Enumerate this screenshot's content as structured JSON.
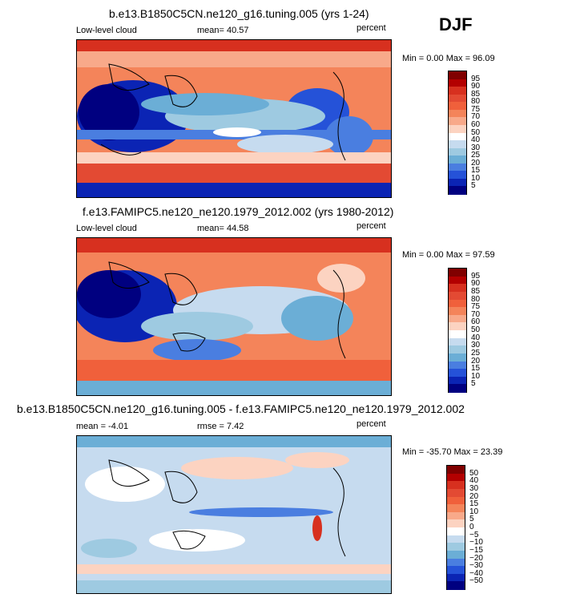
{
  "season": "DJF",
  "panels": [
    {
      "title": "b.e13.B1850C5CN.ne120_g16.tuning.005 (yrs 1-24)",
      "left_label": "Low-level cloud",
      "stat1": "mean=  40.57",
      "stat2": "",
      "units": "percent",
      "minmax": "Min =   0.00 Max =  96.09",
      "type": "field",
      "ticks": [
        "95",
        "90",
        "85",
        "80",
        "75",
        "70",
        "60",
        "50",
        "40",
        "30",
        "25",
        "20",
        "15",
        "10",
        "5"
      ],
      "colors": [
        "#800000",
        "#b30000",
        "#d7301f",
        "#e34a33",
        "#f0603b",
        "#f4845a",
        "#f8a98a",
        "#fcd3c1",
        "#ffffff",
        "#c6dbef",
        "#9ecae1",
        "#6baed6",
        "#4a7ee0",
        "#2552d8",
        "#0b24b4",
        "#000080"
      ]
    },
    {
      "title": "f.e13.FAMIPC5.ne120_ne120.1979_2012.002 (yrs 1980-2012)",
      "left_label": "Low-level cloud",
      "stat1": "mean=  44.58",
      "stat2": "",
      "units": "percent",
      "minmax": "Min =   0.00 Max =  97.59",
      "type": "field",
      "ticks": [
        "95",
        "90",
        "85",
        "80",
        "75",
        "70",
        "60",
        "50",
        "40",
        "30",
        "25",
        "20",
        "15",
        "10",
        "5"
      ],
      "colors": [
        "#800000",
        "#b30000",
        "#d7301f",
        "#e34a33",
        "#f0603b",
        "#f4845a",
        "#f8a98a",
        "#fcd3c1",
        "#ffffff",
        "#c6dbef",
        "#9ecae1",
        "#6baed6",
        "#4a7ee0",
        "#2552d8",
        "#0b24b4",
        "#000080"
      ]
    },
    {
      "title": "b.e13.B1850C5CN.ne120_g16.tuning.005 - f.e13.FAMIPC5.ne120_ne120.1979_2012.002",
      "left_label": "mean =  -4.01",
      "stat1": "rmse =   7.42",
      "stat2": "",
      "units": "percent",
      "minmax": "Min = -35.70 Max =  23.39",
      "type": "diff",
      "ticks": [
        "50",
        "40",
        "30",
        "20",
        "15",
        "10",
        "5",
        "0",
        "−5",
        "−10",
        "−15",
        "−20",
        "−30",
        "−40",
        "−50"
      ],
      "colors": [
        "#800000",
        "#b30000",
        "#d7301f",
        "#e34a33",
        "#f0603b",
        "#f4845a",
        "#f8a98a",
        "#fcd3c1",
        "#ffffff",
        "#c6dbef",
        "#9ecae1",
        "#6baed6",
        "#4a7ee0",
        "#2552d8",
        "#0b24b4",
        "#000080"
      ]
    }
  ]
}
